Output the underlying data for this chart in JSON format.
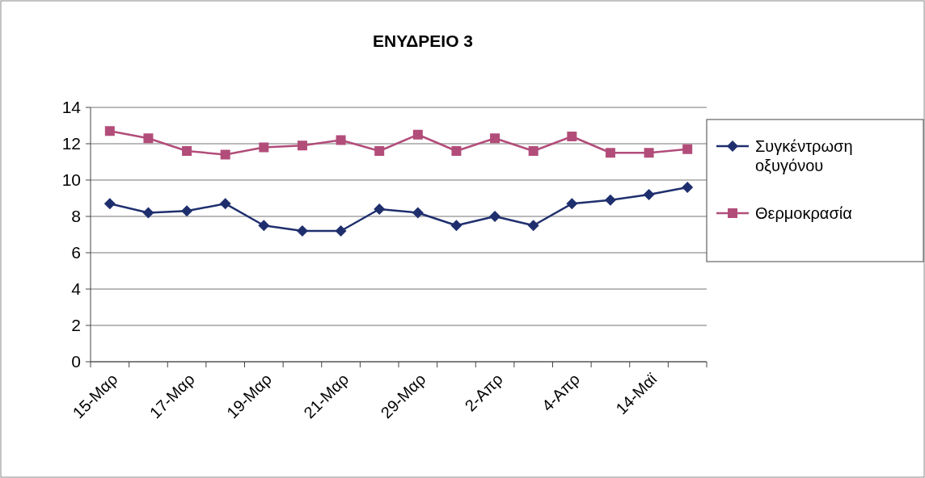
{
  "chart_data": {
    "type": "line",
    "title": "ΕΝΥΔΡΕΙΟ 3",
    "categories": [
      "15-Μαρ",
      null,
      "17-Μαρ",
      null,
      "19-Μαρ",
      null,
      "21-Μαρ",
      null,
      "29-Μαρ",
      null,
      "2-Απρ",
      null,
      "4-Απρ",
      null,
      "14-Μαϊ",
      null
    ],
    "series": [
      {
        "name": "Συγκέντρωση οξυγόνου",
        "color": "#1f2f6e",
        "marker": "diamond",
        "values": [
          8.7,
          8.2,
          8.3,
          8.7,
          7.5,
          7.2,
          7.2,
          8.4,
          8.2,
          7.5,
          8.0,
          7.5,
          8.7,
          8.9,
          9.2,
          9.6
        ]
      },
      {
        "name": "Θερμοκρασία",
        "color": "#b24d7a",
        "marker": "square",
        "values": [
          12.7,
          12.3,
          11.6,
          11.4,
          11.8,
          11.9,
          12.2,
          11.6,
          12.5,
          11.6,
          12.3,
          11.6,
          12.4,
          11.5,
          11.5,
          11.7
        ]
      }
    ],
    "ylim": [
      0,
      14
    ],
    "yticks": [
      0,
      2,
      4,
      6,
      8,
      10,
      12,
      14
    ],
    "grid": "y",
    "legend": "right"
  }
}
